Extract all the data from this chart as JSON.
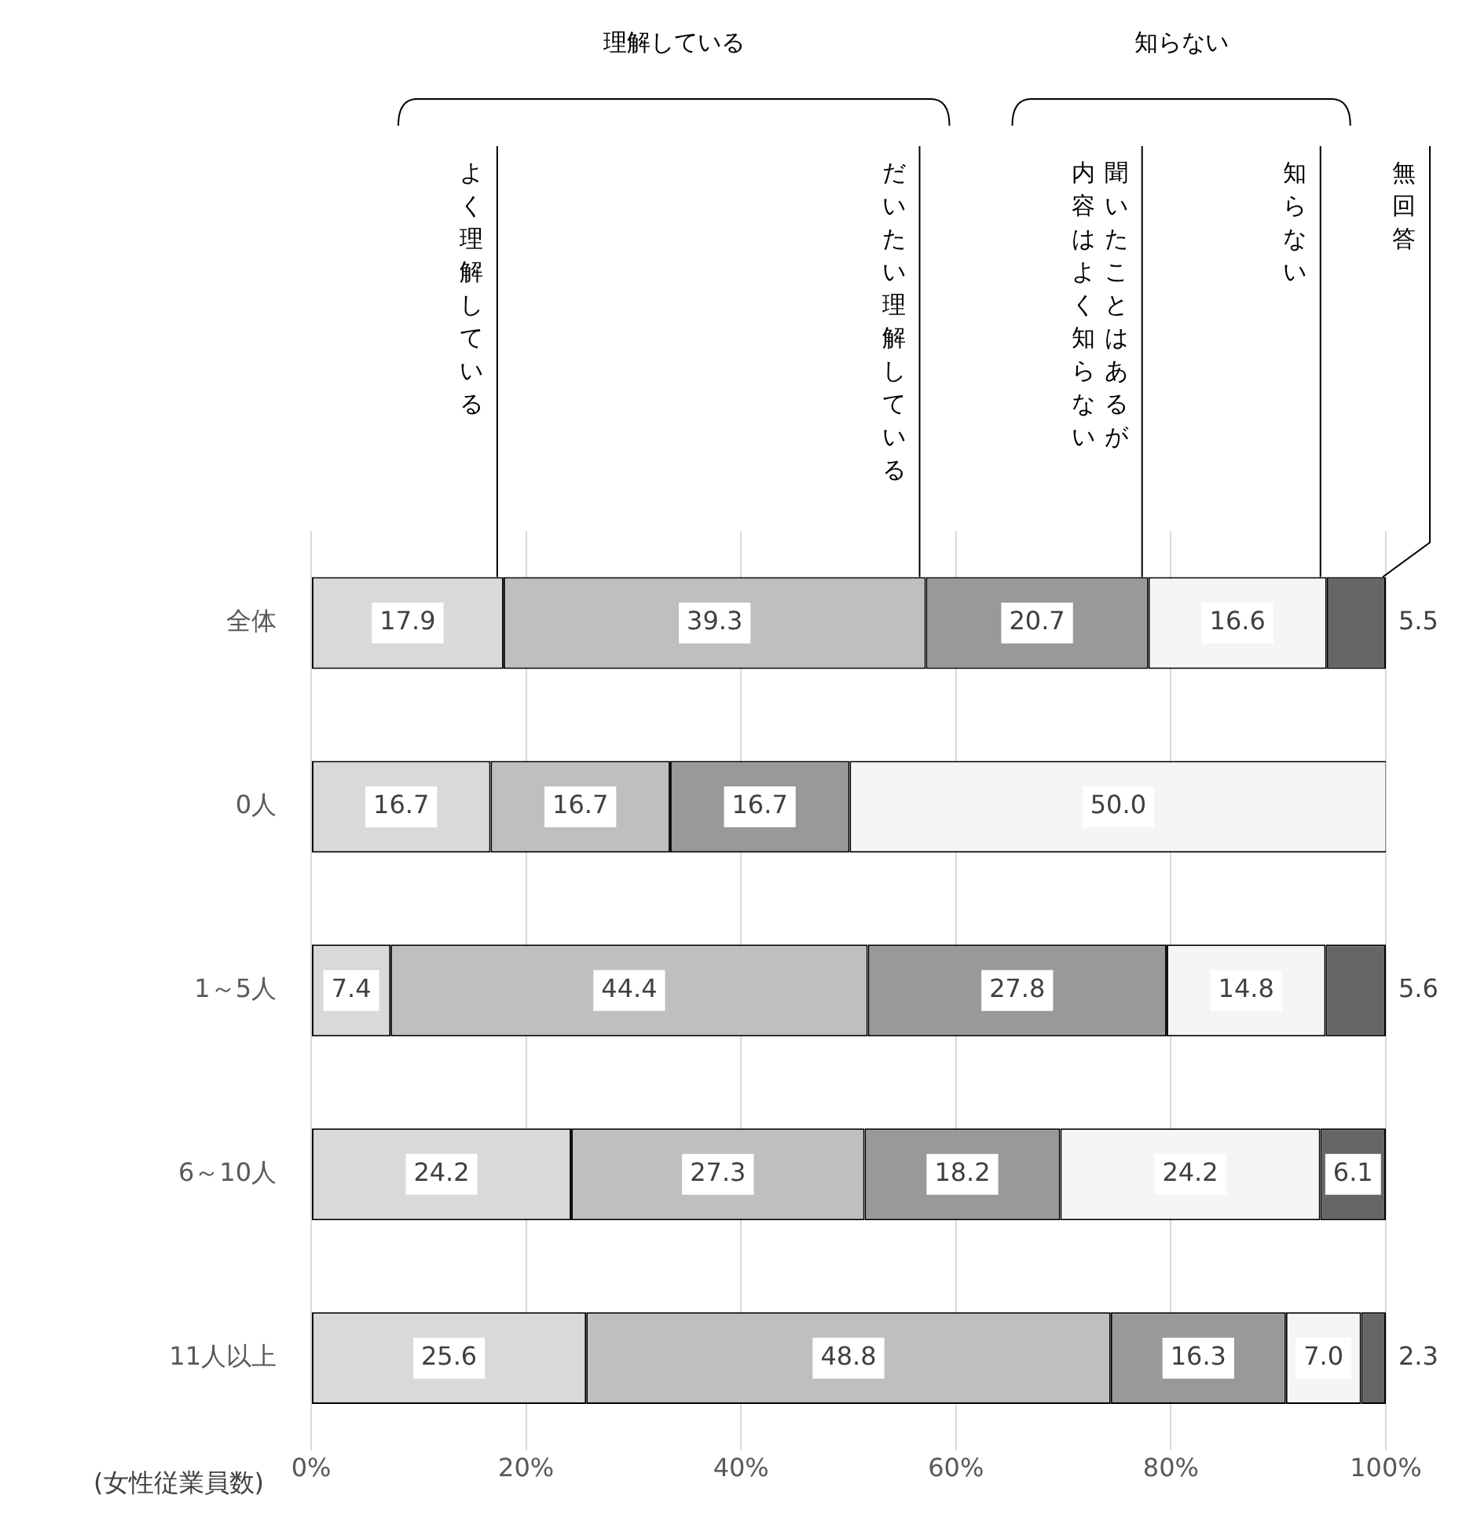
{
  "chart_data": {
    "type": "bar",
    "orientation": "horizontal",
    "stacked": true,
    "ylabel": "(女性従業員数)",
    "annotations": [
      "理解している",
      "知らない"
    ],
    "categories": [
      "全体",
      "0人",
      "1～5人",
      "6～10人",
      "11人以上"
    ],
    "series": [
      {
        "name": "よく理解している",
        "color": "#d9d9d9",
        "values": [
          17.9,
          16.7,
          7.4,
          24.2,
          25.6
        ],
        "value_labels": [
          "17.9",
          "16.7",
          "7.4",
          "24.2",
          "25.6"
        ]
      },
      {
        "name": "だいたい理解している",
        "color": "#bfbfbf",
        "values": [
          39.3,
          16.7,
          44.4,
          27.3,
          48.8
        ],
        "value_labels": [
          "39.3",
          "16.7",
          "44.4",
          "27.3",
          "48.8"
        ]
      },
      {
        "name": "聞いたことはあるが内容はよく知らない",
        "color": "#999999",
        "values": [
          20.7,
          16.7,
          27.8,
          18.2,
          16.3
        ],
        "value_labels": [
          "20.7",
          "16.7",
          "27.8",
          "18.2",
          "16.3"
        ]
      },
      {
        "name": "知らない",
        "color": "#f5f5f5",
        "values": [
          16.6,
          50.0,
          14.8,
          24.2,
          7.0
        ],
        "value_labels": [
          "16.6",
          "50.0",
          "14.8",
          "24.2",
          "7.0"
        ]
      },
      {
        "name": "無回答",
        "color": "#666666",
        "values": [
          5.5,
          0,
          5.6,
          6.1,
          2.3
        ],
        "value_labels": [
          "5.5",
          null,
          "5.6",
          "6.1",
          "2.3"
        ]
      }
    ],
    "xlim": [
      0,
      100
    ],
    "xticks": [
      {
        "value": 0,
        "label": "0%"
      },
      {
        "value": 20,
        "label": "20%"
      },
      {
        "value": 40,
        "label": "40%"
      },
      {
        "value": 60,
        "label": "60%"
      },
      {
        "value": 80,
        "label": "80%"
      },
      {
        "value": 100,
        "label": "100%"
      }
    ],
    "grid": "x",
    "legend": "top"
  }
}
